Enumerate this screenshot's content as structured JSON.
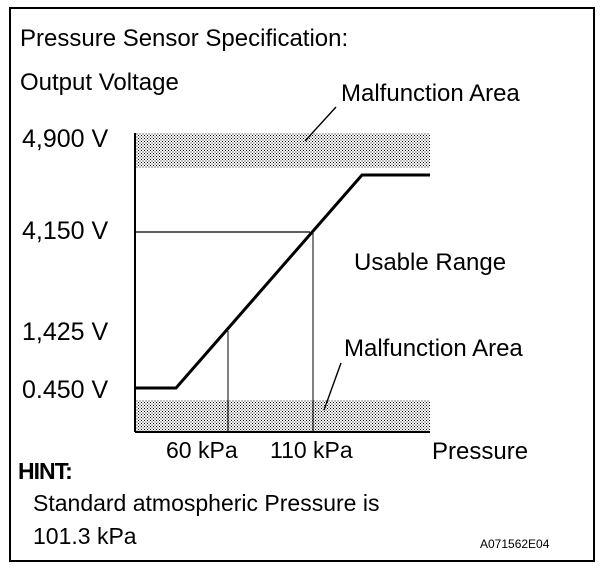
{
  "title": "Pressure Sensor Specification:",
  "y_axis_label": "Output Voltage",
  "x_axis_label": "Pressure",
  "y_ticks": [
    "4,900 V",
    "4,150 V",
    "1,425 V",
    "0.450 V"
  ],
  "x_ticks": [
    "60 kPa",
    "110 kPa"
  ],
  "annotations": {
    "malfunction_top": "Malfunction Area",
    "usable_range": "Usable Range",
    "malfunction_bottom": "Malfunction Area"
  },
  "hint": {
    "heading": "HINT:",
    "line1": "Standard atmospheric Pressure is",
    "line2": "101.3 kPa"
  },
  "figure_code": "A071562E04"
}
